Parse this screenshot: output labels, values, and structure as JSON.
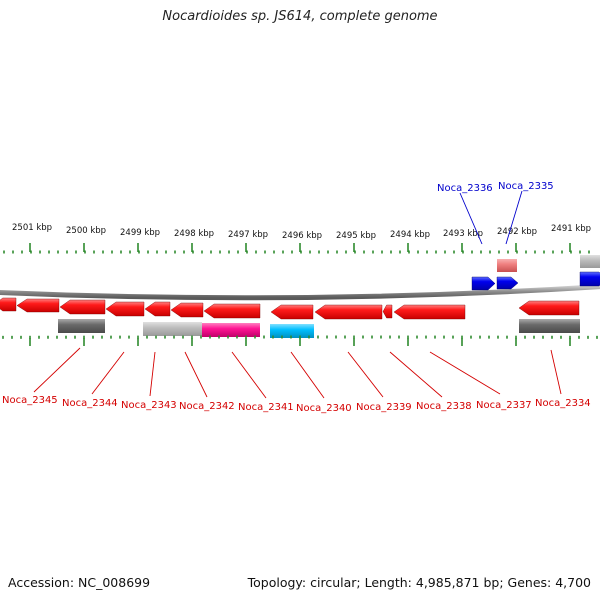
{
  "title": "Nocardioides sp. JS614, complete genome",
  "footer": {
    "accession": "Accession: NC_008699",
    "summary": "Topology: circular; Length: 4,985,871 bp; Genes: 4,700"
  },
  "ruler": {
    "ticks": [
      "2501 kbp",
      "2500 kbp",
      "2499 kbp",
      "2498 kbp",
      "2497 kbp",
      "2496 kbp",
      "2495 kbp",
      "2494 kbp",
      "2493 kbp",
      "2492 kbp",
      "2491 kbp"
    ]
  },
  "genes": {
    "forward": [
      "Noca_2336",
      "Noca_2335"
    ],
    "reverse": [
      "Noca_2345",
      "Noca_2344",
      "Noca_2343",
      "Noca_2342",
      "Noca_2341",
      "Noca_2340",
      "Noca_2339",
      "Noca_2338",
      "Noca_2337",
      "Noca_2334"
    ]
  },
  "colors": {
    "backbone": "#8a8a8a",
    "reverse_gene": "#ff1a1a",
    "forward_gene": "#0000ee",
    "reverse_label": "#d40000",
    "forward_label": "#0000cc",
    "tick_mark": "#2e8b2e",
    "gray_feature": "#6a6a6a",
    "light_gray_feature": "#bdbdbd",
    "magenta_feature": "#ff1493",
    "cyan_feature": "#00bfff",
    "pink_feature": "#f08080"
  }
}
